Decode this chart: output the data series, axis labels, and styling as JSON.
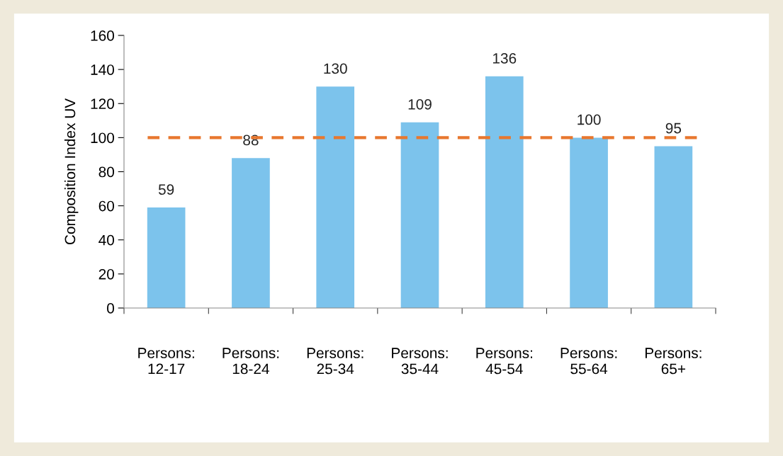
{
  "chart_data": {
    "type": "bar",
    "ylabel": "Composition Index UV",
    "categories": [
      "Persons:\n12-17",
      "Persons:\n18-24",
      "Persons:\n25-34",
      "Persons:\n35-44",
      "Persons:\n45-54",
      "Persons:\n55-64",
      "Persons:\n65+"
    ],
    "values": [
      59,
      88,
      130,
      109,
      136,
      100,
      95
    ],
    "color": "#7cc3ec",
    "ylim": [
      0,
      160
    ],
    "yticks": [
      0,
      20,
      40,
      60,
      80,
      100,
      120,
      140,
      160
    ],
    "ref_lines": [
      {
        "axis": "y",
        "value": 100,
        "color": "#e8772e",
        "line_style": "dashed"
      }
    ],
    "data_labels": true,
    "grid": false,
    "legend": false
  }
}
